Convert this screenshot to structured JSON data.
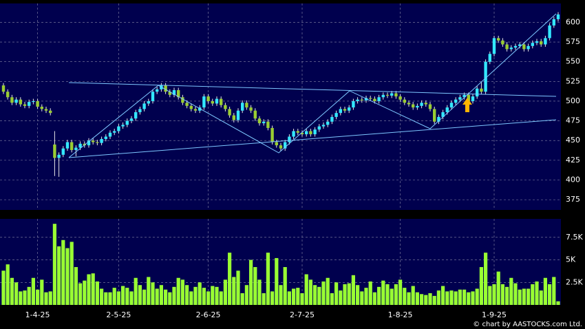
{
  "chart_data": [
    {
      "type": "candlestick",
      "ylim": [
        362,
        624
      ],
      "yticks": [
        375,
        400,
        425,
        450,
        475,
        500,
        525,
        550,
        575,
        600
      ],
      "grid": true,
      "up_color": "#33e8ff",
      "down_color": "#9acd32",
      "wick_color": "#e8e8e8",
      "open": [
        520,
        512,
        505,
        498,
        502,
        496,
        494,
        499,
        500,
        493,
        490,
        488,
        445,
        428,
        432,
        440,
        448,
        438,
        441,
        446,
        444,
        450,
        448,
        447,
        452,
        455,
        460,
        462,
        468,
        470,
        475,
        478,
        486,
        490,
        497,
        500,
        512,
        515,
        520,
        512,
        508,
        514,
        505,
        498,
        494,
        490,
        488,
        492,
        506,
        500,
        497,
        503,
        495,
        490,
        482,
        476,
        488,
        498,
        492,
        488,
        478,
        472,
        474,
        466,
        448,
        444,
        440,
        448,
        455,
        462,
        460,
        458,
        462,
        458,
        464,
        468,
        470,
        474,
        480,
        485,
        490,
        488,
        492,
        500,
        502,
        501,
        504,
        503,
        500,
        505,
        508,
        507,
        510,
        506,
        502,
        498,
        496,
        492,
        494,
        498,
        496,
        490,
        474,
        480,
        486,
        492,
        498,
        502,
        505,
        508,
        500,
        506,
        516,
        512,
        550,
        560,
        580,
        577,
        572,
        566,
        568,
        570,
        572,
        566,
        570,
        574,
        576,
        572,
        580,
        596,
        604
      ],
      "high": [
        523,
        515,
        508,
        505,
        505,
        499,
        502,
        503,
        503,
        496,
        493,
        491,
        462,
        435,
        443,
        451,
        451,
        444,
        449,
        449,
        453,
        453,
        451,
        455,
        458,
        463,
        465,
        471,
        473,
        478,
        481,
        489,
        493,
        500,
        503,
        515,
        518,
        523,
        523,
        515,
        517,
        517,
        508,
        501,
        497,
        493,
        495,
        509,
        509,
        503,
        506,
        506,
        498,
        493,
        485,
        491,
        501,
        501,
        495,
        491,
        481,
        477,
        477,
        469,
        451,
        447,
        451,
        458,
        465,
        465,
        463,
        465,
        465,
        467,
        471,
        473,
        477,
        483,
        488,
        493,
        493,
        495,
        503,
        505,
        505,
        507,
        507,
        506,
        508,
        511,
        511,
        513,
        513,
        509,
        505,
        501,
        499,
        497,
        501,
        501,
        499,
        493,
        483,
        489,
        495,
        501,
        505,
        508,
        511,
        511,
        509,
        519,
        525,
        553,
        563,
        583,
        583,
        580,
        575,
        571,
        573,
        575,
        575,
        573,
        577,
        579,
        579,
        583,
        599,
        607,
        613
      ],
      "low": [
        509,
        502,
        495,
        495,
        493,
        491,
        491,
        496,
        490,
        487,
        485,
        482,
        405,
        404,
        429,
        437,
        435,
        430,
        438,
        441,
        441,
        445,
        444,
        444,
        449,
        452,
        457,
        459,
        465,
        467,
        472,
        475,
        483,
        487,
        494,
        497,
        509,
        512,
        509,
        505,
        505,
        502,
        495,
        491,
        487,
        485,
        485,
        489,
        497,
        494,
        494,
        492,
        487,
        479,
        473,
        473,
        485,
        489,
        485,
        475,
        469,
        469,
        463,
        445,
        441,
        437,
        437,
        445,
        452,
        457,
        455,
        455,
        455,
        455,
        461,
        465,
        467,
        471,
        477,
        482,
        485,
        485,
        489,
        497,
        498,
        498,
        500,
        497,
        497,
        502,
        504,
        504,
        503,
        499,
        495,
        493,
        489,
        489,
        491,
        493,
        487,
        471,
        471,
        477,
        483,
        489,
        495,
        499,
        502,
        497,
        497,
        503,
        509,
        509,
        547,
        557,
        574,
        569,
        563,
        563,
        565,
        567,
        563,
        563,
        567,
        571,
        569,
        569,
        577,
        593,
        601
      ],
      "close": [
        512,
        505,
        498,
        502,
        496,
        494,
        499,
        500,
        493,
        490,
        488,
        485,
        428,
        432,
        440,
        448,
        438,
        441,
        446,
        444,
        450,
        448,
        447,
        452,
        455,
        460,
        462,
        468,
        470,
        475,
        478,
        486,
        490,
        497,
        500,
        512,
        515,
        520,
        512,
        508,
        514,
        505,
        498,
        494,
        490,
        488,
        492,
        506,
        500,
        497,
        503,
        495,
        490,
        482,
        476,
        488,
        498,
        492,
        488,
        478,
        472,
        474,
        466,
        448,
        444,
        440,
        448,
        455,
        462,
        460,
        458,
        462,
        458,
        464,
        468,
        470,
        474,
        480,
        485,
        490,
        488,
        492,
        500,
        502,
        501,
        504,
        503,
        500,
        505,
        508,
        507,
        510,
        506,
        502,
        498,
        496,
        492,
        494,
        498,
        496,
        490,
        474,
        480,
        486,
        492,
        498,
        502,
        505,
        508,
        500,
        506,
        516,
        512,
        550,
        560,
        580,
        577,
        572,
        566,
        568,
        570,
        572,
        566,
        570,
        574,
        576,
        572,
        580,
        596,
        604,
        610
      ]
    },
    {
      "type": "bar",
      "color": "#99ff33",
      "ylim": [
        0,
        9550
      ],
      "grid": true,
      "yticks": [
        {
          "value": 2500,
          "label": "2.5K"
        },
        {
          "value": 5000,
          "label": "5K"
        },
        {
          "value": 7500,
          "label": "7.5K"
        }
      ],
      "categories": [
        null,
        null,
        null,
        null,
        null,
        null,
        null,
        null,
        "1-4-25",
        null,
        null,
        null,
        null,
        null,
        null,
        null,
        null,
        null,
        null,
        null,
        null,
        null,
        null,
        null,
        null,
        null,
        null,
        "2-5-25",
        null,
        null,
        null,
        null,
        null,
        null,
        null,
        null,
        null,
        null,
        null,
        null,
        null,
        null,
        null,
        null,
        null,
        null,
        null,
        null,
        "2-6-25",
        null,
        null,
        null,
        null,
        null,
        null,
        null,
        null,
        null,
        null,
        null,
        null,
        null,
        null,
        null,
        null,
        null,
        null,
        null,
        null,
        null,
        "2-7-25",
        null,
        null,
        null,
        null,
        null,
        null,
        null,
        null,
        null,
        null,
        null,
        null,
        null,
        null,
        null,
        null,
        null,
        null,
        null,
        null,
        null,
        null,
        "1-8-25",
        null,
        null,
        null,
        null,
        null,
        null,
        null,
        null,
        null,
        null,
        null,
        null,
        null,
        null,
        null,
        null,
        null,
        null,
        null,
        null,
        null,
        "1-9-25",
        null,
        null,
        null,
        null,
        null,
        null,
        null,
        null,
        null,
        null,
        null,
        null,
        null,
        null,
        null
      ],
      "values": [
        3800,
        4500,
        3000,
        2500,
        1500,
        1600,
        2000,
        3000,
        1700,
        2800,
        1400,
        1500,
        9000,
        6500,
        7200,
        6300,
        7000,
        4200,
        2400,
        2700,
        3400,
        3500,
        2600,
        1800,
        1400,
        1400,
        1900,
        1500,
        2100,
        1900,
        1500,
        3000,
        2200,
        1700,
        3100,
        2500,
        1800,
        2200,
        1700,
        1400,
        2000,
        3000,
        2800,
        2200,
        1500,
        2000,
        2500,
        1900,
        1500,
        2100,
        2000,
        1500,
        2800,
        5800,
        3100,
        3800,
        1300,
        2200,
        5000,
        4200,
        2800,
        1300,
        5800,
        1500,
        5200,
        2200,
        4200,
        1500,
        1800,
        1900,
        1300,
        3400,
        2800,
        2200,
        2000,
        2600,
        3000,
        1300,
        2500,
        1600,
        2300,
        2400,
        3300,
        2200,
        1500,
        1900,
        2600,
        1400,
        2000,
        2700,
        2300,
        1800,
        2300,
        2800,
        1900,
        1400,
        2100,
        1400,
        1200,
        1100,
        1300,
        1000,
        1600,
        2100,
        1500,
        1600,
        1500,
        1700,
        1700,
        1400,
        1500,
        1800,
        4200,
        5800,
        2100,
        2300,
        3700,
        2300,
        2000,
        3000,
        2400,
        1700,
        1800,
        1800,
        2300,
        2600,
        1600,
        3000,
        2300,
        3100,
        400
      ],
      "credit": "© chart by AASTOCKS.com Ltd."
    }
  ]
}
